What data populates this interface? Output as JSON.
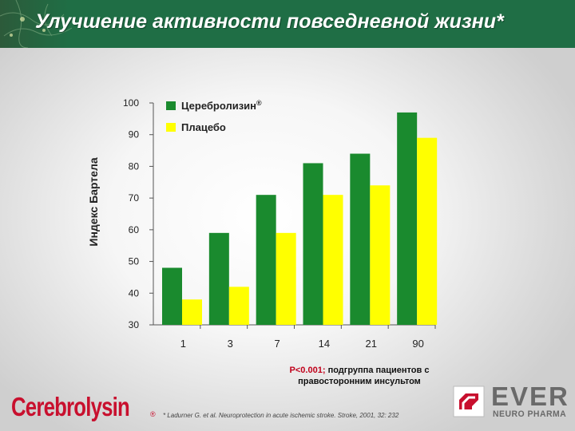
{
  "title": "Улучшение активности повседневной жизни*",
  "chart_data": {
    "type": "bar",
    "ylabel": "Индекс Бартела",
    "xlabel": "",
    "categories": [
      "1",
      "3",
      "7",
      "14",
      "21",
      "90"
    ],
    "y_ticks": [
      "30",
      "40",
      "50",
      "60",
      "70",
      "80",
      "90",
      "100"
    ],
    "ylim": [
      30,
      100
    ],
    "series": [
      {
        "name": "Церебролизин",
        "superscript": "®",
        "color": "#1a8a2e",
        "values": [
          48,
          59,
          71,
          81,
          84,
          97
        ]
      },
      {
        "name": "Плацебо",
        "color": "#ffff00",
        "values": [
          38,
          42,
          59,
          71,
          74,
          89
        ]
      }
    ],
    "legend_position": "top"
  },
  "significance": {
    "p_value": "P<0.001;",
    "text": "подгруппа пациентов с правосторонним инсультом"
  },
  "reference": "* Ladurner G. et al. Neuroprotection in acute ischemic stroke. Stroke, 2001, 32: 232",
  "brand": {
    "name": "Cerebrolysin",
    "registered": "®"
  },
  "company": {
    "name": "EVER",
    "subtitle": "NEURO PHARMA"
  },
  "colors": {
    "header": "#1f6e45",
    "brand_red": "#c8102e",
    "logo_gray": "#6a6a6a"
  }
}
